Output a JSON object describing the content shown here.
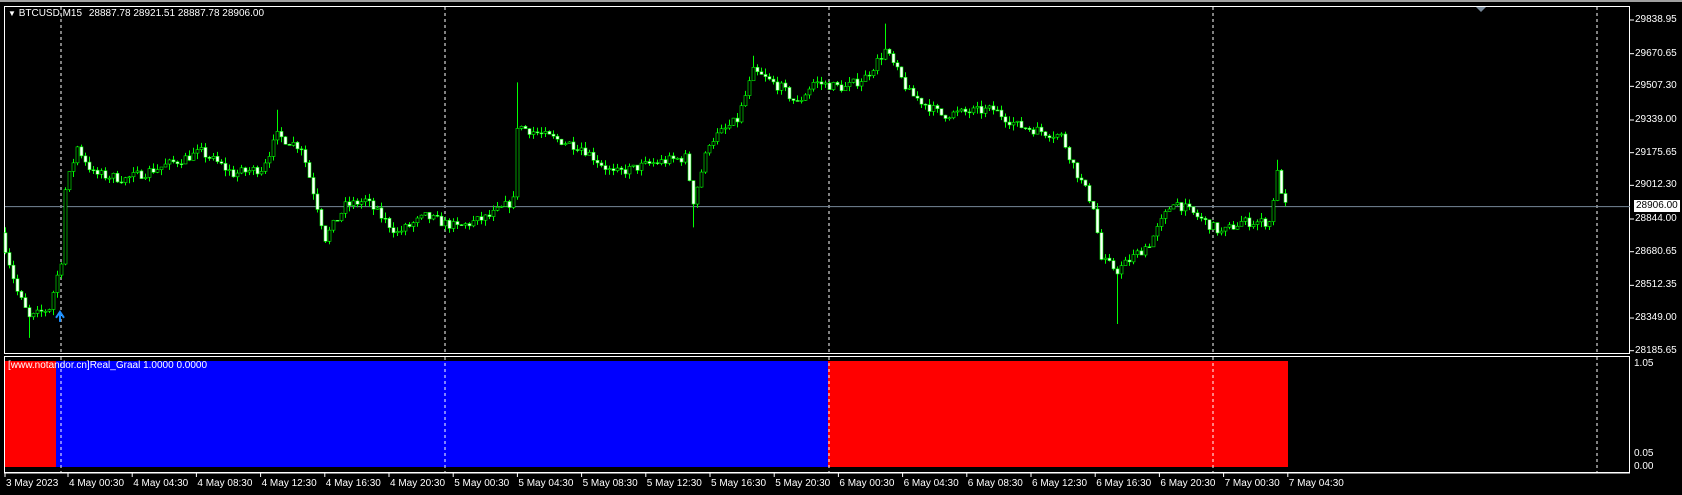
{
  "header": {
    "symbol_label": "BTCUSD,M15",
    "ohlc_label": "28887.78 28921.51 28887.78 28906.00",
    "menu_icon": "triangle-down-icon"
  },
  "indicator": {
    "label": "[www.notandor.cn]Real_Graal 1.0000 0.0000",
    "scale_max": "1.05",
    "scale_min": "0.00",
    "scale_min2": "0.05"
  },
  "colors": {
    "background": "#000000",
    "bull": "#00ff00",
    "bear_body": "#ffffff",
    "price_line": "#778899",
    "grid": "#ffffff",
    "red": "#ff0000",
    "blue": "#0000ff",
    "arrow": "#1e90ff"
  },
  "chart_data": {
    "type": "candlestick",
    "symbol": "BTCUSD",
    "timeframe": "M15",
    "current_price": "28906.00",
    "y_ticks": [
      "29838.95",
      "29670.65",
      "29507.30",
      "29339.00",
      "29175.65",
      "29012.30",
      "28844.00",
      "28680.65",
      "28512.35",
      "28349.00",
      "28185.65"
    ],
    "ylim": [
      28185.65,
      29838.95
    ],
    "x_ticks": [
      "3 May 2023",
      "4 May 00:30",
      "4 May 04:30",
      "4 May 08:30",
      "4 May 12:30",
      "4 May 16:30",
      "4 May 20:30",
      "5 May 00:30",
      "5 May 04:30",
      "5 May 08:30",
      "5 May 12:30",
      "5 May 16:30",
      "5 May 20:30",
      "6 May 00:30",
      "6 May 04:30",
      "6 May 08:30",
      "6 May 12:30",
      "6 May 16:30",
      "6 May 20:30",
      "7 May 00:30",
      "7 May 04:30"
    ],
    "grid": "vertical-dashed-daily",
    "close_path": [
      {
        "t": "2023-05-03 20:30",
        "c": 28775
      },
      {
        "t": "2023-05-03 21:30",
        "c": 28480
      },
      {
        "t": "2023-05-03 22:15",
        "c": 28346,
        "l": 28250
      },
      {
        "t": "2023-05-03 23:30",
        "c": 28400
      },
      {
        "t": "2023-05-04 00:15",
        "c": 28641
      },
      {
        "t": "2023-05-04 00:30",
        "c": 28990
      },
      {
        "t": "2023-05-04 01:15",
        "c": 29204
      },
      {
        "t": "2023-05-04 02:15",
        "c": 29070
      },
      {
        "t": "2023-05-04 04:15",
        "c": 29044
      },
      {
        "t": "2023-05-04 06:15",
        "c": 29097
      },
      {
        "t": "2023-05-04 09:00",
        "c": 29179
      },
      {
        "t": "2023-05-04 11:00",
        "c": 29070
      },
      {
        "t": "2023-05-04 12:45",
        "c": 29097
      },
      {
        "t": "2023-05-04 13:45",
        "c": 29259,
        "h": 29390
      },
      {
        "t": "2023-05-04 15:15",
        "c": 29204
      },
      {
        "t": "2023-05-04 16:15",
        "c": 28909
      },
      {
        "t": "2023-05-04 16:45",
        "c": 28749
      },
      {
        "t": "2023-05-04 18:00",
        "c": 28909
      },
      {
        "t": "2023-05-04 19:15",
        "c": 28936
      },
      {
        "t": "2023-05-04 21:15",
        "c": 28775
      },
      {
        "t": "2023-05-04 23:00",
        "c": 28856
      },
      {
        "t": "2023-05-05 01:00",
        "c": 28802
      },
      {
        "t": "2023-05-05 03:00",
        "c": 28856
      },
      {
        "t": "2023-05-05 04:30",
        "c": 28936
      },
      {
        "t": "2023-05-05 04:45",
        "c": 29312,
        "h": 29527
      },
      {
        "t": "2023-05-05 06:30",
        "c": 29259
      },
      {
        "t": "2023-05-05 08:45",
        "c": 29204
      },
      {
        "t": "2023-05-05 10:45",
        "c": 29070
      },
      {
        "t": "2023-05-05 13:15",
        "c": 29124
      },
      {
        "t": "2023-05-05 15:15",
        "c": 29151
      },
      {
        "t": "2023-05-05 15:45",
        "c": 28936,
        "l": 28802
      },
      {
        "t": "2023-05-05 16:45",
        "c": 29231
      },
      {
        "t": "2023-05-05 18:30",
        "c": 29339
      },
      {
        "t": "2023-05-05 19:30",
        "c": 29580,
        "h": 29660
      },
      {
        "t": "2023-05-05 21:15",
        "c": 29500
      },
      {
        "t": "2023-05-05 22:15",
        "c": 29420
      },
      {
        "t": "2023-05-05 23:15",
        "c": 29527
      },
      {
        "t": "2023-05-06 01:15",
        "c": 29500
      },
      {
        "t": "2023-05-06 02:30",
        "c": 29553
      },
      {
        "t": "2023-05-06 03:45",
        "c": 29687,
        "h": 29821
      },
      {
        "t": "2023-05-06 05:15",
        "c": 29473
      },
      {
        "t": "2023-05-06 07:15",
        "c": 29365
      },
      {
        "t": "2023-05-06 10:30",
        "c": 29392
      },
      {
        "t": "2023-05-06 12:00",
        "c": 29312
      },
      {
        "t": "2023-05-06 14:45",
        "c": 29259
      },
      {
        "t": "2023-05-06 15:45",
        "c": 29070
      },
      {
        "t": "2023-05-06 16:45",
        "c": 28909
      },
      {
        "t": "2023-05-06 17:15",
        "c": 28641
      },
      {
        "t": "2023-05-06 18:15",
        "c": 28587,
        "l": 28319
      },
      {
        "t": "2023-05-06 20:15",
        "c": 28722
      },
      {
        "t": "2023-05-06 21:45",
        "c": 28936
      },
      {
        "t": "2023-05-06 23:15",
        "c": 28856
      },
      {
        "t": "2023-05-07 00:45",
        "c": 28775
      },
      {
        "t": "2023-05-07 02:00",
        "c": 28829
      },
      {
        "t": "2023-05-07 03:45",
        "c": 28829
      },
      {
        "t": "2023-05-07 04:15",
        "c": 29070,
        "h": 29140
      },
      {
        "t": "2023-05-07 04:45",
        "c": 28906
      }
    ],
    "buy_arrow": {
      "t": "2023-05-04 00:00",
      "price": 28370
    },
    "indicator_segments": [
      {
        "start": "2023-05-03 20:30",
        "end": "2023-05-03 23:45",
        "value": 1.0,
        "color": "red"
      },
      {
        "start": "2023-05-03 23:45",
        "end": "2023-05-06 00:00",
        "value": 1.0,
        "color": "blue"
      },
      {
        "start": "2023-05-06 00:00",
        "end": "2023-05-07 04:45",
        "value": 1.0,
        "color": "red"
      }
    ],
    "indicator_ylim": [
      0,
      1.05
    ]
  }
}
